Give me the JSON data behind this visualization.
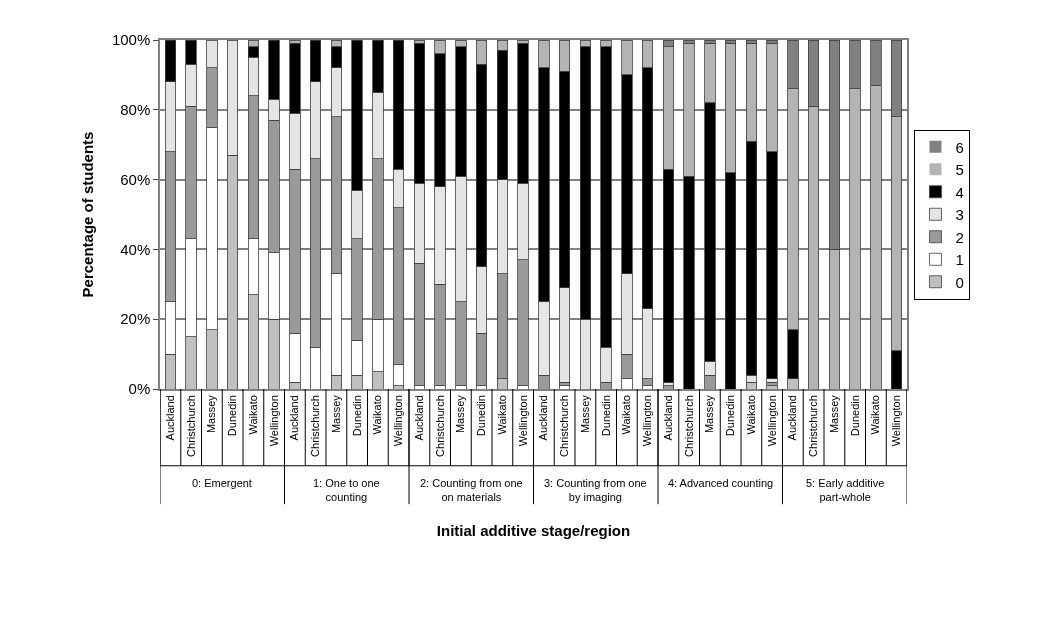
{
  "chart_data": {
    "type": "bar",
    "stacked": true,
    "xlabel": "Initial additive stage/region",
    "ylabel": "Percentage of students",
    "categories": [
      "Auckland",
      "Christchurch",
      "Massey",
      "Dunedin",
      "Waikato",
      "Wellington",
      "Auckland",
      "Christchurch",
      "Massey",
      "Dunedin",
      "Waikato",
      "Wellington",
      "Auckland",
      "Christchurch",
      "Massey",
      "Dunedin",
      "Waikato",
      "Wellington",
      "Auckland",
      "Christchurch",
      "Massey",
      "Dunedin",
      "Waikato",
      "Wellington",
      "Auckland",
      "Christchurch",
      "Massey",
      "Dunedin",
      "Waikato",
      "Wellington",
      "Auckland",
      "Christchurch",
      "Massey",
      "Dunedin",
      "Waikato",
      "Wellington"
    ],
    "annotations": [
      "0: Emergent",
      "1: One to one counting",
      "2: Counting from one on materials",
      "3: Counting from one by imaging",
      "4: Advanced counting",
      "5: Early additive part-whole"
    ],
    "series": [
      {
        "name": "0",
        "color": "#c0c0c0",
        "values": [
          10,
          15,
          17,
          67,
          27,
          20,
          2,
          0,
          4,
          4,
          5,
          1,
          0,
          0,
          0,
          0,
          3,
          0,
          0,
          0,
          0,
          0,
          0,
          0,
          0,
          0,
          0,
          0,
          2,
          1,
          3,
          0,
          0,
          0,
          0,
          0
        ]
      },
      {
        "name": "1",
        "color": "#ffffff",
        "values": [
          15,
          28,
          58,
          0,
          16,
          19,
          14,
          12,
          29,
          10,
          15,
          6,
          1,
          1,
          1,
          1,
          0,
          1,
          0,
          1,
          0,
          0,
          3,
          1,
          0,
          0,
          0,
          0,
          0,
          0,
          0,
          0,
          0,
          0,
          0,
          0
        ]
      },
      {
        "name": "2",
        "color": "#9a9a9a",
        "values": [
          43,
          38,
          17,
          0,
          41,
          38,
          47,
          54,
          45,
          29,
          46,
          45,
          35,
          29,
          24,
          15,
          30,
          36,
          4,
          1,
          0,
          2,
          7,
          2,
          1,
          0,
          4,
          0,
          0,
          1,
          0,
          0,
          0,
          0,
          0,
          0
        ]
      },
      {
        "name": "3",
        "color": "#e4e4e4",
        "values": [
          20,
          12,
          8,
          33,
          11,
          6,
          16,
          22,
          14,
          14,
          19,
          11,
          23,
          28,
          36,
          19,
          27,
          22,
          21,
          27,
          20,
          10,
          23,
          20,
          1,
          0,
          4,
          0,
          2,
          1,
          0,
          0,
          0,
          0,
          0,
          0
        ]
      },
      {
        "name": "4",
        "color": "#000000",
        "values": [
          12,
          7,
          0,
          0,
          3,
          17,
          20,
          12,
          6,
          43,
          15,
          37,
          40,
          38,
          37,
          58,
          37,
          40,
          67,
          62,
          78,
          86,
          57,
          69,
          61,
          61,
          74,
          62,
          67,
          65,
          14,
          0,
          0,
          0,
          0,
          11
        ]
      },
      {
        "name": "5",
        "color": "#b4b4b4",
        "values": [
          0,
          0,
          0,
          0,
          2,
          0,
          1,
          0,
          2,
          0,
          0,
          0,
          1,
          4,
          2,
          7,
          3,
          1,
          8,
          9,
          2,
          2,
          10,
          8,
          35,
          38,
          17,
          37,
          28,
          31,
          69,
          81,
          40,
          86,
          87,
          67
        ]
      },
      {
        "name": "6",
        "color": "#808080",
        "values": [
          0,
          0,
          0,
          0,
          0,
          0,
          0,
          0,
          0,
          0,
          0,
          0,
          0,
          0,
          0,
          0,
          0,
          0,
          0,
          0,
          0,
          0,
          0,
          0,
          2,
          1,
          1,
          1,
          1,
          1,
          14,
          19,
          60,
          14,
          13,
          22
        ]
      }
    ],
    "ylim": [
      0,
      100
    ],
    "yticks": [
      {
        "value": 0,
        "label": "0%"
      },
      {
        "value": 20,
        "label": "20%"
      },
      {
        "value": 40,
        "label": "40%"
      },
      {
        "value": 60,
        "label": "60%"
      },
      {
        "value": 80,
        "label": "80%"
      },
      {
        "value": 100,
        "label": "100%"
      }
    ],
    "grid": "y",
    "legend": "right"
  }
}
